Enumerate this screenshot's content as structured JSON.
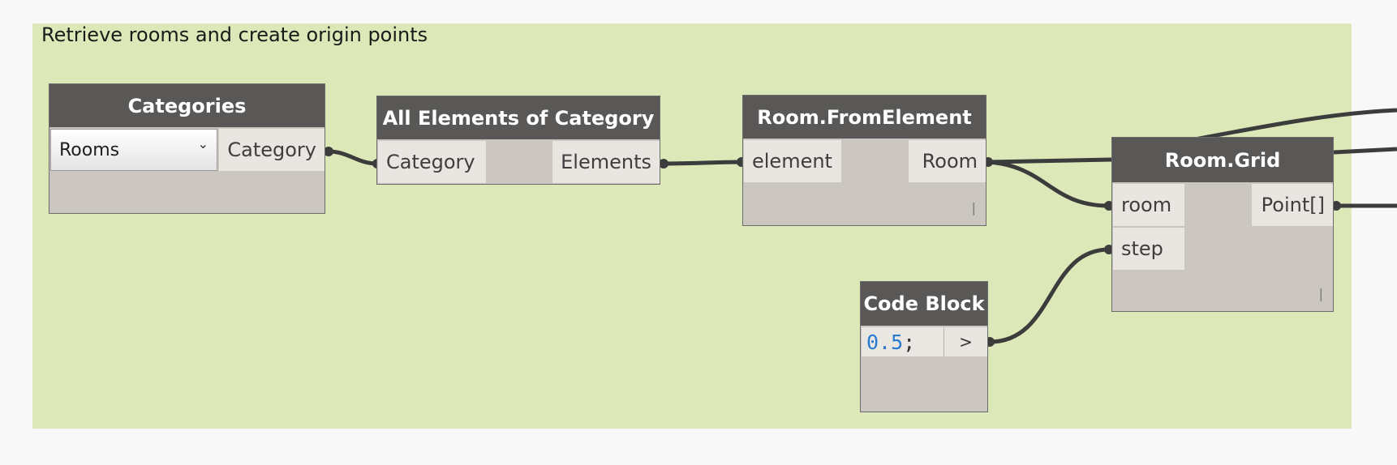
{
  "group": {
    "title": "Retrieve rooms and create origin points",
    "color": "#dde8b8"
  },
  "colors": {
    "node_header": "#5a5856",
    "node_body": "#cbc6c0",
    "port": "#e9e5e0",
    "wire": "#3c3c3c",
    "number": "#2a7ad2"
  },
  "nodes": {
    "categories": {
      "title": "Categories",
      "dropdown_value": "Rooms",
      "output": "Category"
    },
    "all_elements": {
      "title": "All Elements of Category",
      "input": "Category",
      "output": "Elements"
    },
    "room_from_element": {
      "title": "Room.FromElement",
      "input": "element",
      "output": "Room"
    },
    "room_grid": {
      "title": "Room.Grid",
      "inputs": [
        "room",
        "step"
      ],
      "output": "Point[]"
    },
    "code_block": {
      "title": "Code Block",
      "code_number": "0.5",
      "code_semicolon": ";",
      "output": ">"
    }
  }
}
